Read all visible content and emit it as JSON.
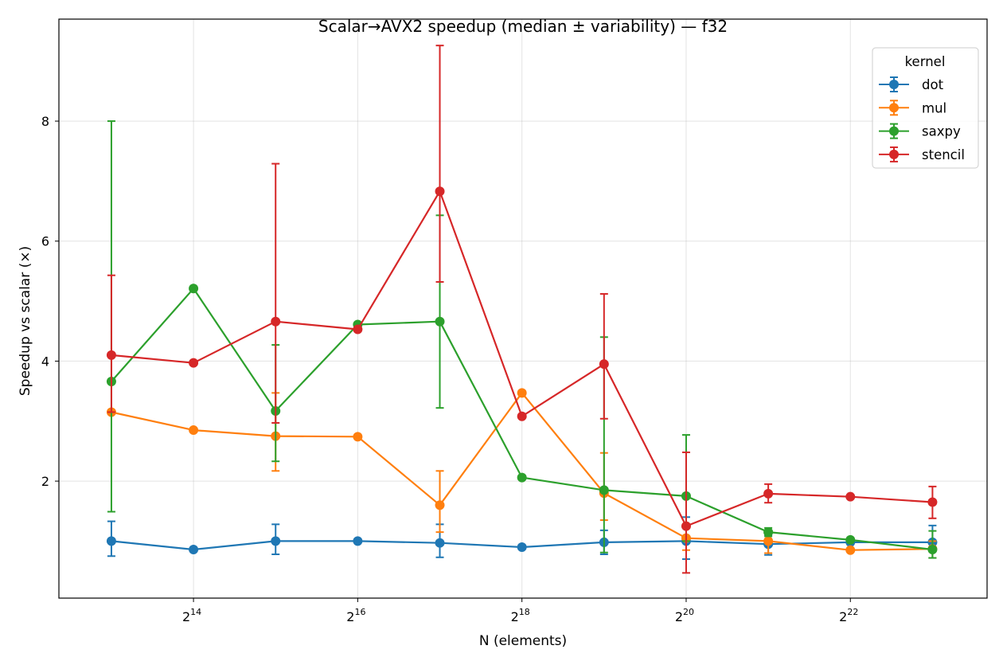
{
  "chart_data": {
    "type": "line",
    "title": "Scalar→AVX2 speedup (median ± variability) — f32",
    "xlabel": "N (elements)",
    "ylabel": "Speedup vs scalar (×)",
    "x_scale": "log2",
    "x": [
      8192,
      16384,
      32768,
      65536,
      131072,
      262144,
      524288,
      1048576,
      2097152,
      4194304,
      8388608
    ],
    "xlim": [
      5260,
      13300000
    ],
    "ylim": [
      0.05,
      9.7
    ],
    "x_ticks": [
      {
        "value": 16384,
        "base": "2",
        "exp": "14"
      },
      {
        "value": 65536,
        "base": "2",
        "exp": "16"
      },
      {
        "value": 262144,
        "base": "2",
        "exp": "18"
      },
      {
        "value": 1048576,
        "base": "2",
        "exp": "20"
      },
      {
        "value": 4194304,
        "base": "2",
        "exp": "22"
      }
    ],
    "y_ticks": [
      {
        "value": 2,
        "label": "2"
      },
      {
        "value": 4,
        "label": "4"
      },
      {
        "value": 6,
        "label": "6"
      },
      {
        "value": 8,
        "label": "8"
      }
    ],
    "grid": true,
    "legend": {
      "title": "kernel",
      "position": "top-right"
    },
    "series": [
      {
        "name": "dot",
        "color": "#1f77b4",
        "values": [
          1.0,
          0.86,
          1.0,
          1.0,
          0.97,
          0.9,
          0.98,
          1.0,
          0.95,
          0.98,
          0.98
        ],
        "err_low": [
          0.75,
          null,
          0.78,
          null,
          0.73,
          null,
          0.78,
          0.7,
          0.77,
          null,
          0.72
        ],
        "err_high": [
          1.33,
          null,
          1.28,
          null,
          1.28,
          null,
          1.18,
          1.4,
          1.1,
          null,
          1.26
        ]
      },
      {
        "name": "mul",
        "color": "#ff7f0e",
        "values": [
          3.15,
          2.85,
          2.75,
          2.74,
          1.6,
          3.47,
          1.8,
          1.05,
          1.0,
          0.85,
          0.87
        ],
        "err_low": [
          3.15,
          null,
          2.17,
          null,
          1.15,
          null,
          1.35,
          0.85,
          0.8,
          null,
          0.72
        ],
        "err_high": [
          3.15,
          null,
          3.47,
          null,
          2.17,
          null,
          2.47,
          1.05,
          1.0,
          null,
          1.0
        ]
      },
      {
        "name": "saxpy",
        "color": "#2ca02c",
        "values": [
          3.66,
          5.21,
          3.17,
          4.61,
          4.66,
          2.06,
          1.85,
          1.75,
          1.15,
          1.02,
          0.86
        ],
        "err_low": [
          1.49,
          null,
          2.33,
          null,
          3.22,
          null,
          0.81,
          1.0,
          1.08,
          null,
          0.72
        ],
        "err_high": [
          8.0,
          null,
          4.27,
          null,
          6.43,
          null,
          4.4,
          2.77,
          1.22,
          null,
          1.17
        ]
      },
      {
        "name": "stencil",
        "color": "#d62728",
        "values": [
          4.1,
          3.97,
          4.66,
          4.53,
          6.83,
          3.08,
          3.95,
          1.25,
          1.79,
          1.74,
          1.65
        ],
        "err_low": [
          3.15,
          null,
          2.97,
          null,
          5.32,
          null,
          3.04,
          0.47,
          1.64,
          null,
          1.38
        ],
        "err_high": [
          5.43,
          null,
          7.29,
          null,
          9.26,
          null,
          5.12,
          2.48,
          1.95,
          null,
          1.91
        ]
      }
    ]
  }
}
